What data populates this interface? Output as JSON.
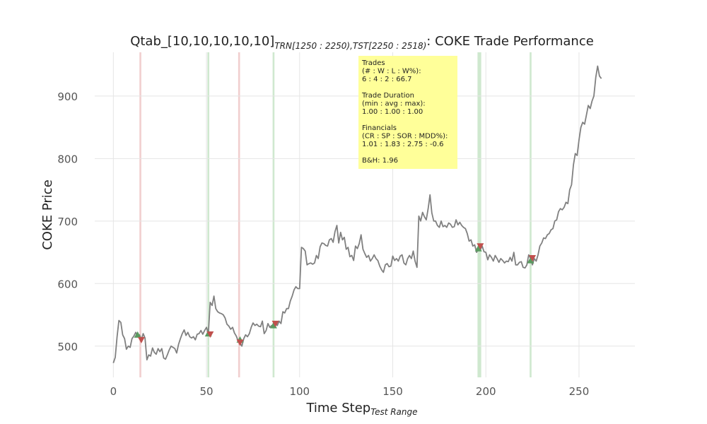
{
  "chart_data": {
    "type": "line",
    "title_main": "Qtab_[10,10,10,10,10]",
    "title_trn": "TRN[1250 : 2250),",
    "title_tst": "TST[2250 : 2518)",
    "title_suffix": ": COKE Trade Performance",
    "xlabel_main": "Time Step",
    "xlabel_sub": "Test Range",
    "ylabel": "COKE Price",
    "xlim": [
      -10,
      280
    ],
    "ylim": [
      450,
      970
    ],
    "xticks": [
      0,
      50,
      100,
      150,
      200,
      250
    ],
    "yticks": [
      500,
      600,
      700,
      800,
      900
    ],
    "grid": true,
    "series": [
      {
        "color": "#808080",
        "points": [
          [
            0,
            473
          ],
          [
            1,
            482
          ],
          [
            2,
            515
          ],
          [
            3,
            541
          ],
          [
            4,
            538
          ],
          [
            5,
            518
          ],
          [
            6,
            512
          ],
          [
            7,
            495
          ],
          [
            8,
            500
          ],
          [
            9,
            498
          ],
          [
            10,
            512
          ],
          [
            11,
            516
          ],
          [
            12,
            522
          ],
          [
            13,
            515
          ],
          [
            14,
            518
          ],
          [
            15,
            510
          ],
          [
            16,
            520
          ],
          [
            17,
            513
          ],
          [
            18,
            478
          ],
          [
            19,
            486
          ],
          [
            20,
            484
          ],
          [
            21,
            497
          ],
          [
            22,
            490
          ],
          [
            23,
            487
          ],
          [
            24,
            496
          ],
          [
            25,
            491
          ],
          [
            26,
            496
          ],
          [
            27,
            481
          ],
          [
            28,
            479
          ],
          [
            29,
            486
          ],
          [
            30,
            494
          ],
          [
            31,
            500
          ],
          [
            32,
            498
          ],
          [
            33,
            496
          ],
          [
            34,
            489
          ],
          [
            35,
            503
          ],
          [
            36,
            512
          ],
          [
            37,
            520
          ],
          [
            38,
            526
          ],
          [
            39,
            517
          ],
          [
            40,
            522
          ],
          [
            41,
            515
          ],
          [
            42,
            513
          ],
          [
            43,
            515
          ],
          [
            44,
            510
          ],
          [
            45,
            519
          ],
          [
            46,
            520
          ],
          [
            47,
            525
          ],
          [
            48,
            519
          ],
          [
            49,
            525
          ],
          [
            50,
            530
          ],
          [
            51,
            520
          ],
          [
            52,
            570
          ],
          [
            53,
            565
          ],
          [
            54,
            580
          ],
          [
            55,
            560
          ],
          [
            56,
            555
          ],
          [
            57,
            553
          ],
          [
            58,
            552
          ],
          [
            59,
            550
          ],
          [
            60,
            545
          ],
          [
            61,
            535
          ],
          [
            62,
            532
          ],
          [
            63,
            527
          ],
          [
            64,
            530
          ],
          [
            65,
            521
          ],
          [
            66,
            516
          ],
          [
            67,
            508
          ],
          [
            68,
            505
          ],
          [
            69,
            500
          ],
          [
            70,
            512
          ],
          [
            71,
            518
          ],
          [
            72,
            515
          ],
          [
            73,
            520
          ],
          [
            74,
            530
          ],
          [
            75,
            537
          ],
          [
            76,
            533
          ],
          [
            77,
            535
          ],
          [
            78,
            532
          ],
          [
            79,
            531
          ],
          [
            80,
            540
          ],
          [
            81,
            520
          ],
          [
            82,
            525
          ],
          [
            83,
            536
          ],
          [
            84,
            530
          ],
          [
            85,
            533
          ],
          [
            86,
            530
          ],
          [
            87,
            537
          ],
          [
            88,
            533
          ],
          [
            89,
            540
          ],
          [
            90,
            536
          ],
          [
            91,
            555
          ],
          [
            92,
            553
          ],
          [
            93,
            560
          ],
          [
            94,
            560
          ],
          [
            95,
            572
          ],
          [
            96,
            580
          ],
          [
            97,
            590
          ],
          [
            98,
            595
          ],
          [
            99,
            592
          ],
          [
            100,
            592
          ],
          [
            101,
            658
          ],
          [
            102,
            656
          ],
          [
            103,
            652
          ],
          [
            104,
            630
          ],
          [
            105,
            632
          ],
          [
            106,
            633
          ],
          [
            107,
            631
          ],
          [
            108,
            633
          ],
          [
            109,
            645
          ],
          [
            110,
            640
          ],
          [
            111,
            659
          ],
          [
            112,
            665
          ],
          [
            113,
            664
          ],
          [
            114,
            661
          ],
          [
            115,
            660
          ],
          [
            116,
            670
          ],
          [
            117,
            672
          ],
          [
            118,
            666
          ],
          [
            119,
            683
          ],
          [
            120,
            693
          ],
          [
            121,
            665
          ],
          [
            122,
            682
          ],
          [
            123,
            670
          ],
          [
            124,
            674
          ],
          [
            125,
            655
          ],
          [
            126,
            658
          ],
          [
            127,
            643
          ],
          [
            128,
            645
          ],
          [
            129,
            637
          ],
          [
            130,
            660
          ],
          [
            131,
            656
          ],
          [
            132,
            664
          ],
          [
            133,
            678
          ],
          [
            134,
            655
          ],
          [
            135,
            648
          ],
          [
            136,
            642
          ],
          [
            137,
            645
          ],
          [
            138,
            636
          ],
          [
            139,
            640
          ],
          [
            140,
            646
          ],
          [
            141,
            640
          ],
          [
            142,
            637
          ],
          [
            143,
            628
          ],
          [
            144,
            622
          ],
          [
            145,
            618
          ],
          [
            146,
            630
          ],
          [
            147,
            632
          ],
          [
            148,
            627
          ],
          [
            149,
            628
          ],
          [
            150,
            644
          ],
          [
            151,
            637
          ],
          [
            152,
            640
          ],
          [
            153,
            636
          ],
          [
            154,
            644
          ],
          [
            155,
            646
          ],
          [
            156,
            633
          ],
          [
            157,
            630
          ],
          [
            158,
            640
          ],
          [
            159,
            645
          ],
          [
            160,
            640
          ],
          [
            161,
            652
          ],
          [
            162,
            636
          ],
          [
            163,
            626
          ],
          [
            164,
            708
          ],
          [
            165,
            700
          ],
          [
            166,
            714
          ],
          [
            167,
            707
          ],
          [
            168,
            702
          ],
          [
            169,
            720
          ],
          [
            170,
            742
          ],
          [
            171,
            713
          ],
          [
            172,
            700
          ],
          [
            173,
            700
          ],
          [
            174,
            693
          ],
          [
            175,
            690
          ],
          [
            176,
            700
          ],
          [
            177,
            691
          ],
          [
            178,
            693
          ],
          [
            179,
            690
          ],
          [
            180,
            697
          ],
          [
            181,
            695
          ],
          [
            182,
            690
          ],
          [
            183,
            691
          ],
          [
            184,
            702
          ],
          [
            185,
            694
          ],
          [
            186,
            698
          ],
          [
            187,
            693
          ],
          [
            188,
            690
          ],
          [
            189,
            688
          ],
          [
            190,
            680
          ],
          [
            191,
            668
          ],
          [
            192,
            670
          ],
          [
            193,
            660
          ],
          [
            194,
            662
          ],
          [
            195,
            650
          ],
          [
            196,
            656
          ],
          [
            197,
            654
          ],
          [
            198,
            660
          ],
          [
            199,
            651
          ],
          [
            200,
            650
          ],
          [
            201,
            638
          ],
          [
            202,
            646
          ],
          [
            203,
            642
          ],
          [
            204,
            636
          ],
          [
            205,
            645
          ],
          [
            206,
            640
          ],
          [
            207,
            634
          ],
          [
            208,
            640
          ],
          [
            209,
            637
          ],
          [
            210,
            633
          ],
          [
            211,
            636
          ],
          [
            212,
            635
          ],
          [
            213,
            642
          ],
          [
            214,
            636
          ],
          [
            215,
            650
          ],
          [
            216,
            630
          ],
          [
            217,
            630
          ],
          [
            218,
            634
          ],
          [
            219,
            635
          ],
          [
            220,
            626
          ],
          [
            221,
            625
          ],
          [
            222,
            630
          ],
          [
            223,
            646
          ],
          [
            224,
            640
          ],
          [
            225,
            630
          ],
          [
            226,
            640
          ],
          [
            227,
            636
          ],
          [
            228,
            646
          ],
          [
            229,
            660
          ],
          [
            230,
            665
          ],
          [
            231,
            673
          ],
          [
            232,
            672
          ],
          [
            233,
            678
          ],
          [
            234,
            680
          ],
          [
            235,
            686
          ],
          [
            236,
            688
          ],
          [
            237,
            700
          ],
          [
            238,
            702
          ],
          [
            239,
            715
          ],
          [
            240,
            720
          ],
          [
            241,
            718
          ],
          [
            242,
            722
          ],
          [
            243,
            730
          ],
          [
            244,
            728
          ],
          [
            245,
            750
          ],
          [
            246,
            758
          ],
          [
            247,
            790
          ],
          [
            248,
            808
          ],
          [
            249,
            805
          ],
          [
            250,
            830
          ],
          [
            251,
            850
          ],
          [
            252,
            858
          ],
          [
            253,
            855
          ],
          [
            254,
            870
          ],
          [
            255,
            885
          ],
          [
            256,
            880
          ],
          [
            257,
            892
          ],
          [
            258,
            900
          ],
          [
            259,
            930
          ],
          [
            260,
            948
          ],
          [
            261,
            932
          ],
          [
            262,
            928
          ]
        ]
      }
    ],
    "buy_markers": [
      [
        13,
        518
      ],
      [
        51,
        520
      ],
      [
        68,
        510
      ],
      [
        86,
        533
      ],
      [
        196,
        656
      ],
      [
        224,
        637
      ]
    ],
    "sell_markers": [
      [
        15,
        510
      ],
      [
        52,
        519
      ],
      [
        68,
        506
      ],
      [
        87,
        536
      ],
      [
        197,
        660
      ],
      [
        225,
        641
      ]
    ],
    "buy_spans": [
      [
        50.5,
        51.5
      ],
      [
        85.5,
        86.5
      ],
      [
        195.5,
        197.5
      ],
      [
        223.5,
        224.5
      ]
    ],
    "sell_spans": [
      [
        14,
        15
      ],
      [
        67,
        68
      ]
    ],
    "colors": {
      "line": "#808080",
      "buy": "#5a9a60",
      "sell": "#c0504d",
      "buy_span": "#cfe8cf",
      "sell_span": "#f1cfcf",
      "grid": "#e5e5e5",
      "annotation_bg": "#ffff99"
    },
    "annotation": {
      "lines": [
        "Trades",
        "(# : W : L : W%):",
        "6 : 4 : 2 : 66.7",
        "",
        "Trade Duration",
        "(min : avg : max):",
        "1.00 : 1.00 : 1.00",
        "",
        "Financials",
        "(CR : SP : SOR : MDD%):",
        "1.01 : 1.83 : 2.75 : -0.6",
        "",
        "B&H: 1.96"
      ]
    }
  }
}
